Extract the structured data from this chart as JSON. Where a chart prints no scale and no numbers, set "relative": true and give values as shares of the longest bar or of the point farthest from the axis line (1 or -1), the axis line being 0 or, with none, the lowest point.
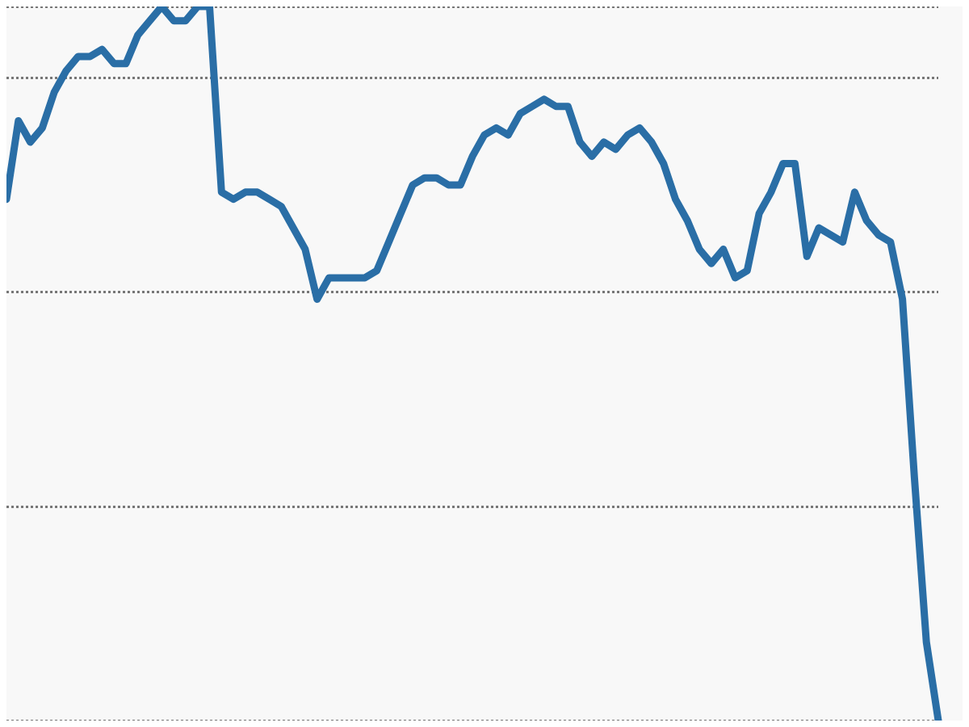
{
  "chart_data": {
    "type": "line",
    "relative": true,
    "grid": "y",
    "line_style": "solid",
    "categories": [
      null,
      null,
      null,
      null,
      null,
      null,
      null,
      null,
      null,
      null,
      null,
      null,
      null,
      null,
      null,
      null,
      null,
      null,
      null,
      null,
      null,
      null,
      null,
      null,
      null,
      null,
      null,
      null,
      null,
      null,
      null,
      null,
      null,
      null,
      null,
      null,
      null,
      null,
      null,
      null,
      null,
      null,
      null,
      null,
      null,
      null,
      null,
      null,
      null,
      null,
      null,
      null,
      null,
      null,
      null,
      null,
      null,
      null,
      null,
      null,
      null,
      null,
      null,
      null,
      null,
      null,
      null,
      null,
      null,
      null,
      null,
      null,
      null,
      null,
      null,
      null,
      null,
      null,
      null
    ],
    "series": [
      {
        "color": "#2a6ea6",
        "values": [
          0.73,
          0.84,
          0.81,
          0.83,
          0.88,
          0.91,
          0.93,
          0.93,
          0.94,
          0.92,
          0.92,
          0.96,
          0.98,
          1,
          0.98,
          0.98,
          1,
          1,
          0.74,
          0.73,
          0.74,
          0.74,
          0.73,
          0.72,
          0.69,
          0.66,
          0.59,
          0.62,
          0.62,
          0.62,
          0.62,
          0.63,
          0.67,
          0.71,
          0.75,
          0.76,
          0.76,
          0.75,
          0.75,
          0.79,
          0.82,
          0.83,
          0.82,
          0.85,
          0.86,
          0.87,
          0.86,
          0.86,
          0.81,
          0.79,
          0.81,
          0.8,
          0.82,
          0.83,
          0.81,
          0.78,
          0.73,
          0.7,
          0.66,
          0.64,
          0.66,
          0.62,
          0.63,
          0.71,
          0.74,
          0.78,
          0.78,
          0.65,
          0.69,
          0.68,
          0.67,
          0.74,
          0.7,
          0.68,
          0.67,
          0.59,
          0.34,
          0.11,
          0
        ]
      }
    ]
  }
}
